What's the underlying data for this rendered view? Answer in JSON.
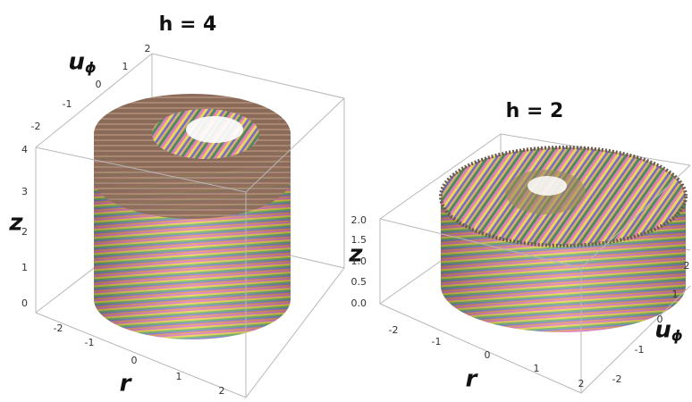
{
  "panels": [
    {
      "title": "h = 4",
      "z": {
        "label": "z",
        "ticks": [
          "0",
          "1",
          "2",
          "3",
          "4"
        ]
      },
      "r": {
        "label": "r",
        "ticks": [
          "-2",
          "-1",
          "0",
          "1",
          "2"
        ]
      },
      "u": {
        "label": "u",
        "subscript": "ϕ",
        "ticks": [
          "-2",
          "-1",
          "0",
          "1",
          "2"
        ]
      }
    },
    {
      "title": "h = 2",
      "z": {
        "label": "z",
        "ticks": [
          "0.0",
          "0.5",
          "1.0",
          "1.5",
          "2.0"
        ]
      },
      "r": {
        "label": "r",
        "ticks": [
          "-2",
          "-1",
          "0",
          "1",
          "2"
        ]
      },
      "u": {
        "label": "u",
        "subscript": "ϕ",
        "ticks": [
          "-2",
          "-1",
          "0",
          "1",
          "2"
        ]
      }
    }
  ]
}
